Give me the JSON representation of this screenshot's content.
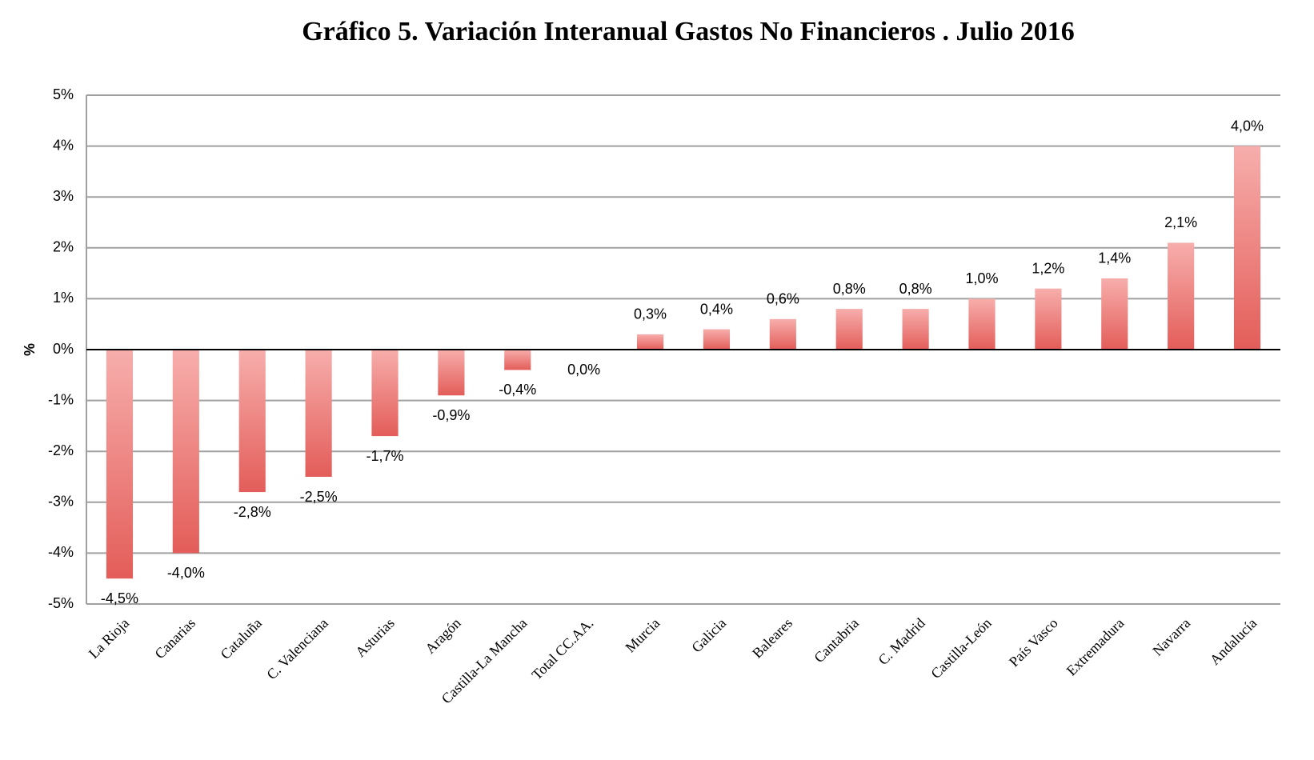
{
  "chart_data": {
    "type": "bar",
    "title": "Gráfico 5. Variación Interanual Gastos No Financieros . Julio 2016",
    "y_label": "%",
    "categories": [
      "La Rioja",
      "Canarias",
      "Cataluña",
      "C. Valenciana",
      "Asturias",
      "Aragón",
      "Castilla-La Mancha",
      "Total CC.AA.",
      "Murcia",
      "Galicia",
      "Baleares",
      "Cantabria",
      "C. Madrid",
      "Castilla-León",
      "País Vasco",
      "Extremadura",
      "Navarra",
      "Andalucía"
    ],
    "values": [
      -4.5,
      -4.0,
      -2.8,
      -2.5,
      -1.7,
      -0.9,
      -0.4,
      0.0,
      0.3,
      0.4,
      0.6,
      0.8,
      0.8,
      1.0,
      1.2,
      1.4,
      2.1,
      4.0
    ],
    "value_labels": [
      "-4,5%",
      "-4,0%",
      "-2,8%",
      "-2,5%",
      "-1,7%",
      "-0,9%",
      "-0,4%",
      "0,0%",
      "0,3%",
      "0,4%",
      "0,6%",
      "0,8%",
      "0,8%",
      "1,0%",
      "1,2%",
      "1,4%",
      "2,1%",
      "4,0%"
    ],
    "color": "#e35d59",
    "ylim": [
      -5,
      5
    ],
    "yticks": [
      {
        "value": -5,
        "label": "-5%"
      },
      {
        "value": -4,
        "label": "-4%"
      },
      {
        "value": -3,
        "label": "-3%"
      },
      {
        "value": -2,
        "label": "-2%"
      },
      {
        "value": -1,
        "label": "-1%"
      },
      {
        "value": 0,
        "label": "0%"
      },
      {
        "value": 1,
        "label": "1%"
      },
      {
        "value": 2,
        "label": "2%"
      },
      {
        "value": 3,
        "label": "3%"
      },
      {
        "value": 4,
        "label": "4%"
      },
      {
        "value": 5,
        "label": "5%"
      }
    ],
    "grid": true
  }
}
